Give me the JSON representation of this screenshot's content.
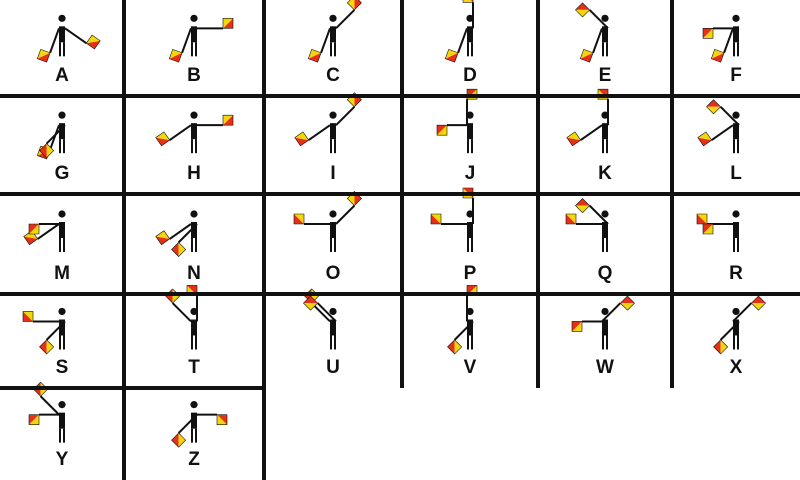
{
  "colors": {
    "flag_red": "#e53217",
    "flag_yellow": "#f5d60a",
    "figure": "#111111",
    "background": "#ffffff"
  },
  "icon": "semaphore-flag-icon",
  "letters": [
    {
      "letter": "A",
      "right": 6,
      "left": 7
    },
    {
      "letter": "B",
      "right": 6,
      "left": 8
    },
    {
      "letter": "C",
      "right": 6,
      "left": 9
    },
    {
      "letter": "D",
      "right": 6,
      "left": 10
    },
    {
      "letter": "E",
      "right": 6,
      "left": 11
    },
    {
      "letter": "F",
      "right": 6,
      "left": 12
    },
    {
      "letter": "G",
      "right": 6,
      "left": 13
    },
    {
      "letter": "H",
      "right": 7,
      "left": 8
    },
    {
      "letter": "I",
      "right": 7,
      "left": 9
    },
    {
      "letter": "J",
      "right": 10,
      "left": 12
    },
    {
      "letter": "K",
      "right": 7,
      "left": 10
    },
    {
      "letter": "L",
      "right": 7,
      "left": 11
    },
    {
      "letter": "M",
      "right": 7,
      "left": 12
    },
    {
      "letter": "N",
      "right": 7,
      "left": 13
    },
    {
      "letter": "O",
      "right": 8,
      "left": 9
    },
    {
      "letter": "P",
      "right": 8,
      "left": 10
    },
    {
      "letter": "Q",
      "right": 8,
      "left": 11
    },
    {
      "letter": "R",
      "right": 8,
      "left": 12
    },
    {
      "letter": "S",
      "right": 8,
      "left": 13
    },
    {
      "letter": "T",
      "right": 9,
      "left": 10
    },
    {
      "letter": "U",
      "right": 9,
      "left": 11
    },
    {
      "letter": "V",
      "right": 10,
      "left": 13
    },
    {
      "letter": "W",
      "right": 11,
      "left": 12
    },
    {
      "letter": "X",
      "right": 11,
      "left": 13
    },
    {
      "letter": "Y",
      "right": 9,
      "left": 12
    },
    {
      "letter": "Z",
      "right": 12,
      "left": 13
    }
  ]
}
